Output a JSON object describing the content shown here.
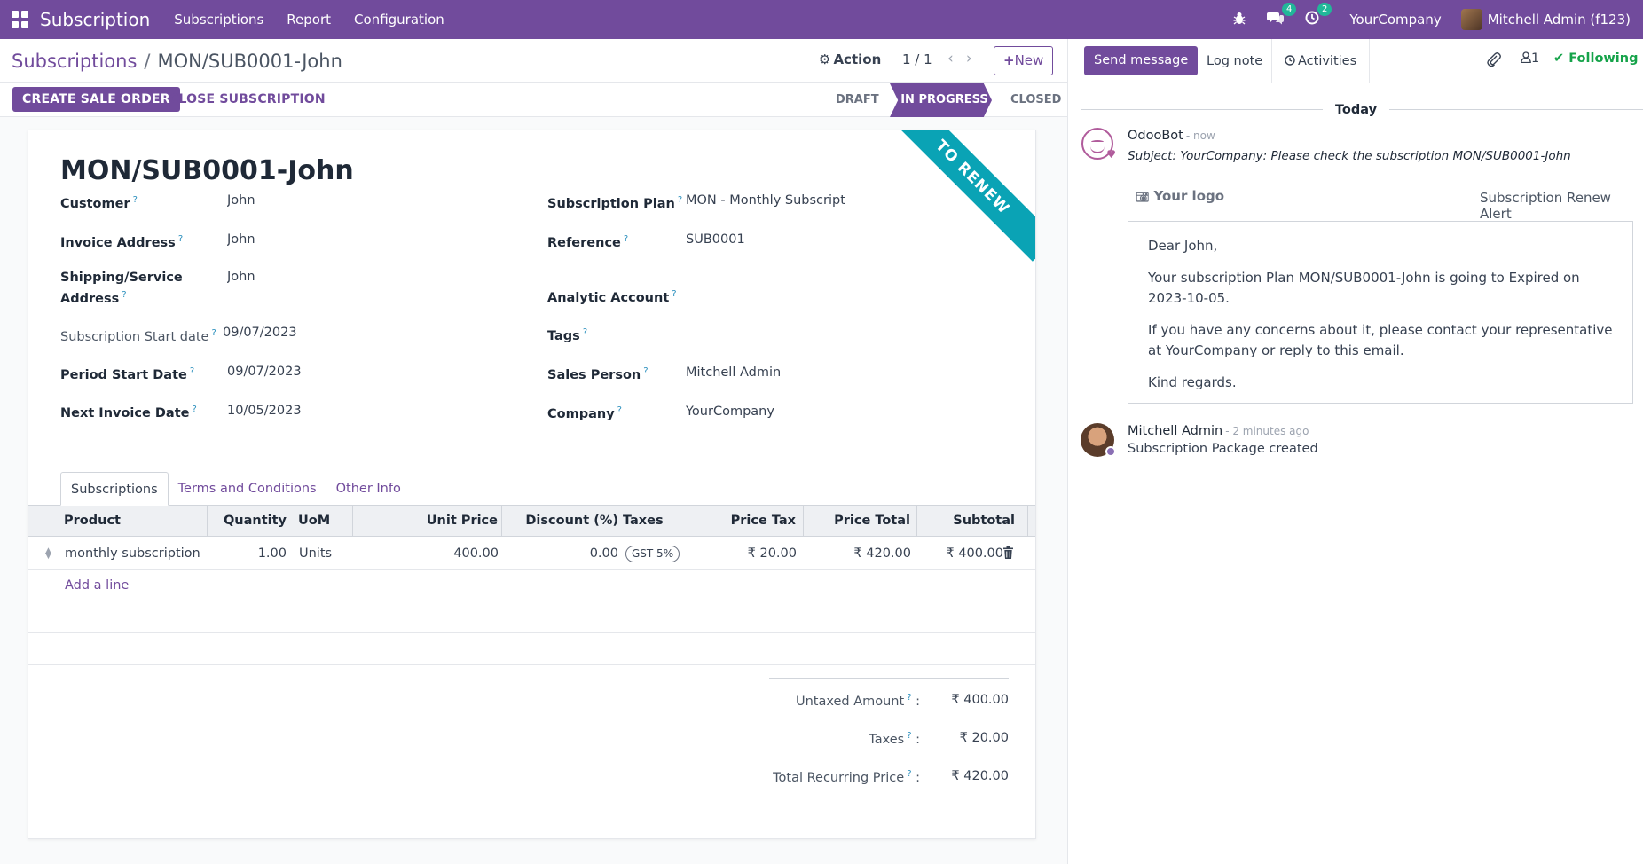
{
  "navbar": {
    "app_name": "Subscription",
    "menu": [
      "Subscriptions",
      "Report",
      "Configuration"
    ],
    "messages_badge": "4",
    "activities_badge": "2",
    "company": "YourCompany",
    "user": "Mitchell Admin (f123)"
  },
  "control": {
    "breadcrumb_parent": "Subscriptions",
    "breadcrumb_separator": "/",
    "breadcrumb_current": "MON/SUB0001-John",
    "action_label": "Action",
    "pager": "1 / 1",
    "new_label": "New"
  },
  "statusbar": {
    "create_sale_order": "CREATE SALE ORDER",
    "close_subscription": "CLOSE SUBSCRIPTION",
    "stages": [
      "DRAFT",
      "IN PROGRESS",
      "CLOSED"
    ],
    "active_stage": "IN PROGRESS"
  },
  "form": {
    "ribbon": "TO RENEW",
    "title": "MON/SUB0001-John",
    "left_fields": [
      {
        "label": "Customer",
        "value": "John"
      },
      {
        "label": "Invoice Address",
        "value": "John"
      },
      {
        "label": "Shipping/Service",
        "label2": "Address",
        "value": "John"
      },
      {
        "label": "Subscription Start date",
        "value": "09/07/2023"
      },
      {
        "label": "Period Start Date",
        "value": "09/07/2023"
      },
      {
        "label": "Next Invoice Date",
        "value": "10/05/2023"
      }
    ],
    "right_fields": [
      {
        "label": "Subscription Plan",
        "value": "MON - Monthly Subscription"
      },
      {
        "label": "Reference",
        "value": "SUB0001"
      },
      {
        "label": "Analytic Account",
        "value": ""
      },
      {
        "label": "Tags",
        "value": ""
      },
      {
        "label": "Sales Person",
        "value": "Mitchell Admin"
      },
      {
        "label": "Company",
        "value": "YourCompany"
      }
    ],
    "tooltip_mark": "?"
  },
  "tabs": [
    "Subscriptions",
    "Terms and Conditions",
    "Other Info"
  ],
  "table": {
    "headers": [
      "Product",
      "Quantity",
      "UoM",
      "Unit Price",
      "Discount (%)",
      "Taxes",
      "Price Tax",
      "Price Total",
      "Subtotal"
    ],
    "rows": [
      {
        "product": "monthly subscription",
        "quantity": "1.00",
        "uom": "Units",
        "unit_price": "400.00",
        "discount": "0.00",
        "tax": "GST 5%",
        "price_tax": "₹ 20.00",
        "price_total": "₹ 420.00",
        "subtotal": "₹ 400.00"
      }
    ],
    "add_line": "Add a line"
  },
  "totals": [
    {
      "label": "Untaxed Amount",
      "value": "₹ 400.00"
    },
    {
      "label": "Taxes",
      "value": "₹ 20.00"
    },
    {
      "label": "Total Recurring Price",
      "value": "₹ 420.00"
    }
  ],
  "chatter": {
    "send_message": "Send message",
    "log_note": "Log note",
    "activities": "Activities",
    "followers_count": "1",
    "following": "Following",
    "date_separator": "Today",
    "messages": [
      {
        "author": "OdooBot",
        "time": "- now",
        "subject": "Subject: YourCompany: Please check the subscription MON/SUB0001-John",
        "logo": "Your logo",
        "alert_title": "Subscription Renew Alert",
        "greeting": "Dear John,",
        "paragraph1": "Your subscription Plan MON/SUB0001-John is going to Expired on 2023-10-05.",
        "paragraph2": "If you have any concerns about it, please contact your representative at YourCompany or reply to this email.",
        "closing": "Kind regards."
      },
      {
        "author": "Mitchell Admin",
        "time": "- 2 minutes ago",
        "body": "Subscription Package created"
      }
    ]
  },
  "colors": {
    "brand": "#714b9c",
    "ribbon": "#0aa3b5",
    "following": "#16a34a",
    "badge": "#21b799"
  }
}
